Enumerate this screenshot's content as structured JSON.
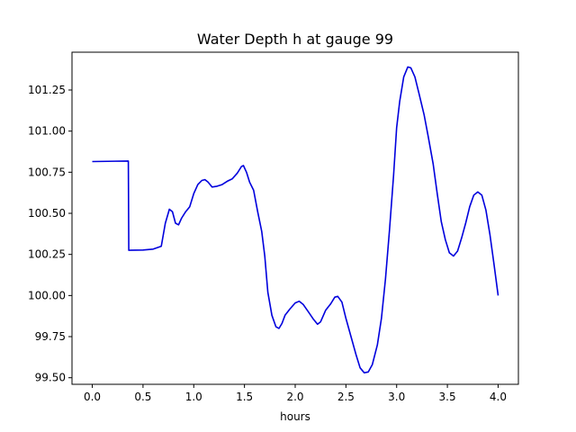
{
  "chart_data": {
    "type": "line",
    "title": "Water Depth h at gauge 99",
    "xlabel": "hours",
    "ylabel": "",
    "xlim": [
      -0.2,
      4.2
    ],
    "ylim": [
      99.46,
      101.48
    ],
    "xticks": [
      0.0,
      0.5,
      1.0,
      1.5,
      2.0,
      2.5,
      3.0,
      3.5,
      4.0
    ],
    "xtick_labels": [
      "0.0",
      "0.5",
      "1.0",
      "1.5",
      "2.0",
      "2.5",
      "3.0",
      "3.5",
      "4.0"
    ],
    "yticks": [
      99.5,
      99.75,
      100.0,
      100.25,
      100.5,
      100.75,
      101.0,
      101.25
    ],
    "ytick_labels": [
      "99.50",
      "99.75",
      "100.00",
      "100.25",
      "100.50",
      "100.75",
      "101.00",
      "101.25"
    ],
    "grid": false,
    "series": [
      {
        "name": "",
        "color": "#0000dd",
        "points": [
          [
            0.0,
            100.815
          ],
          [
            0.355,
            100.818
          ],
          [
            0.36,
            100.275
          ],
          [
            0.5,
            100.277
          ],
          [
            0.6,
            100.282
          ],
          [
            0.68,
            100.3
          ],
          [
            0.72,
            100.44
          ],
          [
            0.76,
            100.525
          ],
          [
            0.79,
            100.51
          ],
          [
            0.82,
            100.44
          ],
          [
            0.85,
            100.43
          ],
          [
            0.88,
            100.47
          ],
          [
            0.92,
            100.51
          ],
          [
            0.96,
            100.54
          ],
          [
            1.0,
            100.62
          ],
          [
            1.04,
            100.675
          ],
          [
            1.08,
            100.7
          ],
          [
            1.11,
            100.705
          ],
          [
            1.14,
            100.69
          ],
          [
            1.18,
            100.66
          ],
          [
            1.23,
            100.665
          ],
          [
            1.28,
            100.675
          ],
          [
            1.33,
            100.695
          ],
          [
            1.38,
            100.71
          ],
          [
            1.43,
            100.745
          ],
          [
            1.47,
            100.785
          ],
          [
            1.49,
            100.79
          ],
          [
            1.52,
            100.75
          ],
          [
            1.55,
            100.69
          ],
          [
            1.59,
            100.64
          ],
          [
            1.63,
            100.51
          ],
          [
            1.67,
            100.39
          ],
          [
            1.7,
            100.24
          ],
          [
            1.73,
            100.02
          ],
          [
            1.77,
            99.88
          ],
          [
            1.81,
            99.81
          ],
          [
            1.84,
            99.8
          ],
          [
            1.87,
            99.83
          ],
          [
            1.9,
            99.88
          ],
          [
            1.95,
            99.92
          ],
          [
            2.0,
            99.955
          ],
          [
            2.04,
            99.965
          ],
          [
            2.08,
            99.945
          ],
          [
            2.13,
            99.9
          ],
          [
            2.18,
            99.855
          ],
          [
            2.22,
            99.825
          ],
          [
            2.25,
            99.84
          ],
          [
            2.3,
            99.91
          ],
          [
            2.35,
            99.95
          ],
          [
            2.39,
            99.99
          ],
          [
            2.42,
            99.995
          ],
          [
            2.46,
            99.96
          ],
          [
            2.5,
            99.86
          ],
          [
            2.55,
            99.75
          ],
          [
            2.6,
            99.64
          ],
          [
            2.64,
            99.56
          ],
          [
            2.68,
            99.53
          ],
          [
            2.72,
            99.535
          ],
          [
            2.76,
            99.58
          ],
          [
            2.81,
            99.7
          ],
          [
            2.85,
            99.86
          ],
          [
            2.89,
            100.1
          ],
          [
            2.93,
            100.4
          ],
          [
            2.97,
            100.73
          ],
          [
            3.0,
            101.02
          ],
          [
            3.03,
            101.18
          ],
          [
            3.07,
            101.33
          ],
          [
            3.11,
            101.39
          ],
          [
            3.14,
            101.385
          ],
          [
            3.18,
            101.33
          ],
          [
            3.22,
            101.23
          ],
          [
            3.27,
            101.1
          ],
          [
            3.31,
            100.97
          ],
          [
            3.36,
            100.8
          ],
          [
            3.4,
            100.62
          ],
          [
            3.44,
            100.45
          ],
          [
            3.48,
            100.34
          ],
          [
            3.52,
            100.26
          ],
          [
            3.56,
            100.24
          ],
          [
            3.6,
            100.27
          ],
          [
            3.64,
            100.35
          ],
          [
            3.68,
            100.44
          ],
          [
            3.72,
            100.54
          ],
          [
            3.76,
            100.61
          ],
          [
            3.8,
            100.63
          ],
          [
            3.84,
            100.61
          ],
          [
            3.88,
            100.52
          ],
          [
            3.92,
            100.37
          ],
          [
            3.96,
            100.19
          ],
          [
            4.0,
            100.0
          ]
        ]
      }
    ]
  }
}
